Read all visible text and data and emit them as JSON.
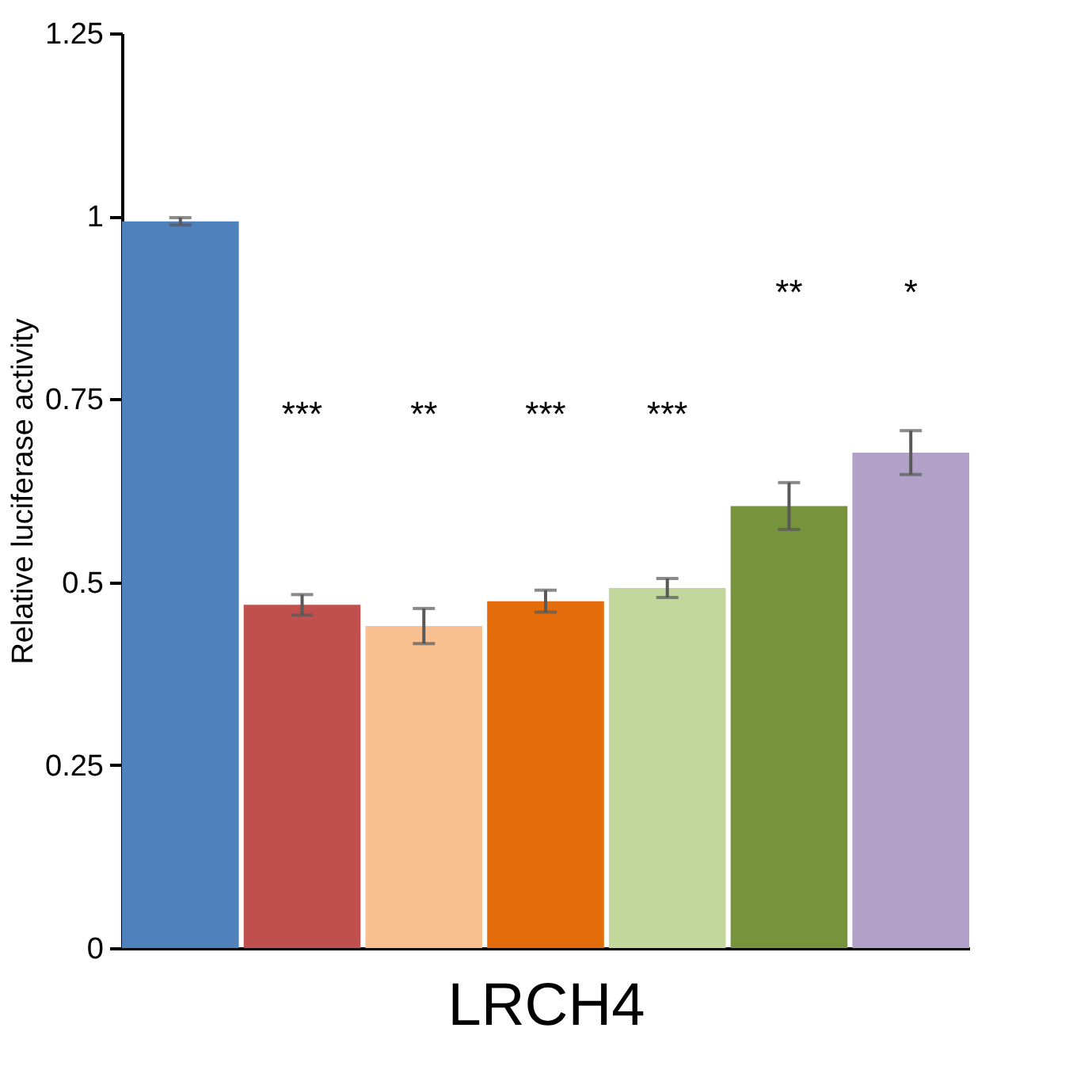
{
  "chart_data": {
    "type": "bar",
    "xlabel": "LRCH4",
    "ylabel": "Relative luciferase activity",
    "categories": [
      null,
      null,
      null,
      null,
      null,
      null,
      null
    ],
    "values": [
      0.993,
      0.469,
      0.44,
      0.474,
      0.492,
      0.604,
      0.677
    ],
    "errors": [
      0.005,
      0.014,
      0.024,
      0.015,
      0.013,
      0.032,
      0.03
    ],
    "colors": [
      "#4f81bd",
      "#c0504d",
      "#f9c090",
      "#e46c0a",
      "#c3d69b",
      "#77933c",
      "#b1a0c7"
    ],
    "ylim": [
      0,
      1.25
    ],
    "yticks": [
      0,
      0.25,
      0.5,
      0.75,
      1,
      1.25
    ],
    "tick_labels": "y",
    "grid": false,
    "annotations": [
      "***",
      "**",
      "***",
      "***",
      "**",
      "*"
    ]
  }
}
